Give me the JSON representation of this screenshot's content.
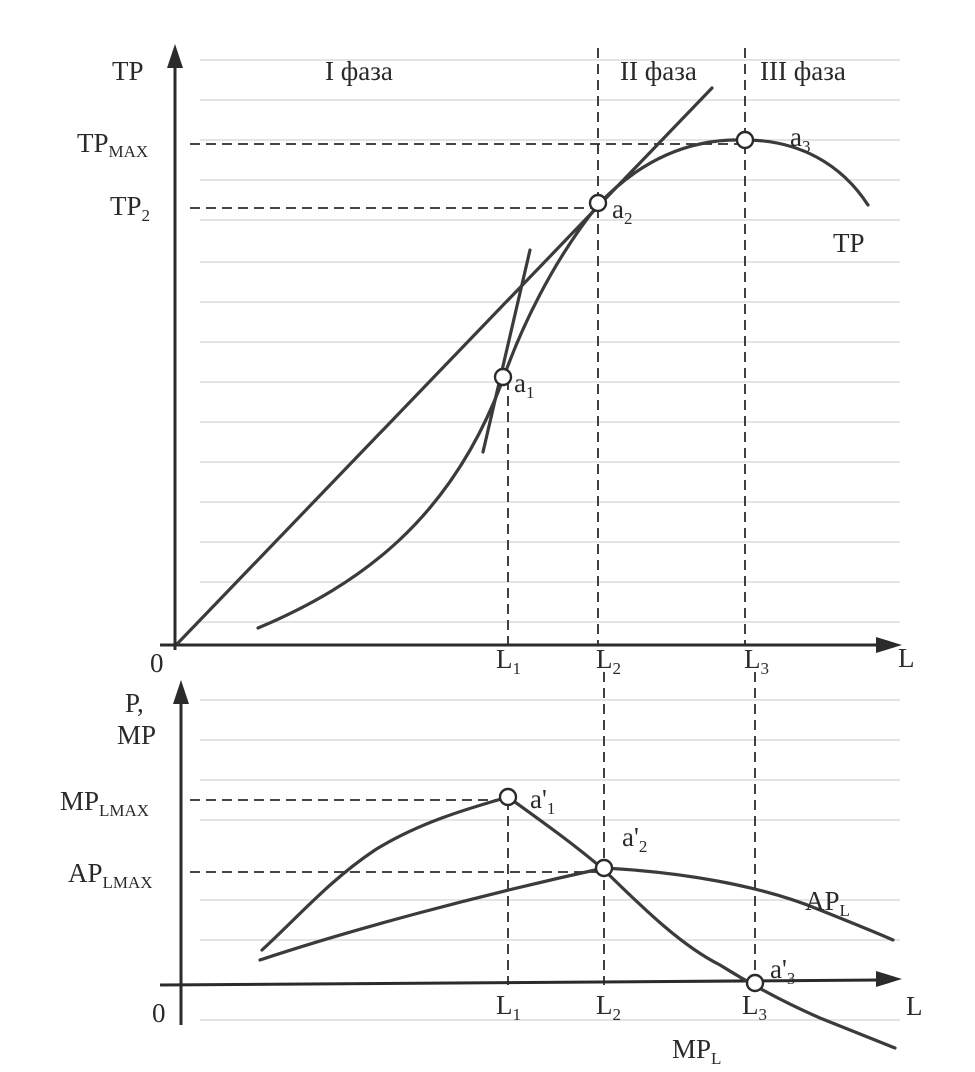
{
  "top_graph": {
    "y_axis_label": "TP",
    "origin_label": "0",
    "x_axis_label": "L",
    "phases": [
      "I фаза",
      "II фаза",
      "III фаза"
    ],
    "y_ticks": [
      {
        "main": "TP",
        "sub": "MAX"
      },
      {
        "main": "TP",
        "sub": "2"
      }
    ],
    "x_ticks": [
      {
        "main": "L",
        "sub": "1"
      },
      {
        "main": "L",
        "sub": "2"
      },
      {
        "main": "L",
        "sub": "3"
      }
    ],
    "curve_label": "TP",
    "points": [
      {
        "main": "a",
        "sub": "1"
      },
      {
        "main": "a",
        "sub": "2"
      },
      {
        "main": "a",
        "sub": "3"
      }
    ]
  },
  "bottom_graph": {
    "y_axis_label_line1": "P,",
    "y_axis_label_line2": "MP",
    "origin_label": "0",
    "x_axis_label": "L",
    "y_ticks": [
      {
        "main": "MP",
        "sub": "LMAX"
      },
      {
        "main": "AP",
        "sub": "LMAX"
      }
    ],
    "x_ticks": [
      {
        "main": "L",
        "sub": "1"
      },
      {
        "main": "L",
        "sub": "2"
      },
      {
        "main": "L",
        "sub": "3"
      }
    ],
    "curve_labels": [
      {
        "main": "AP",
        "sub": "L"
      },
      {
        "main": "MP",
        "sub": "L"
      }
    ],
    "points": [
      {
        "main": "a'",
        "sub": "1"
      },
      {
        "main": "a'",
        "sub": "2"
      },
      {
        "main": "a'",
        "sub": "3"
      }
    ]
  },
  "colors": {
    "ink": "#2b2b2b",
    "paper": "#ffffff"
  }
}
